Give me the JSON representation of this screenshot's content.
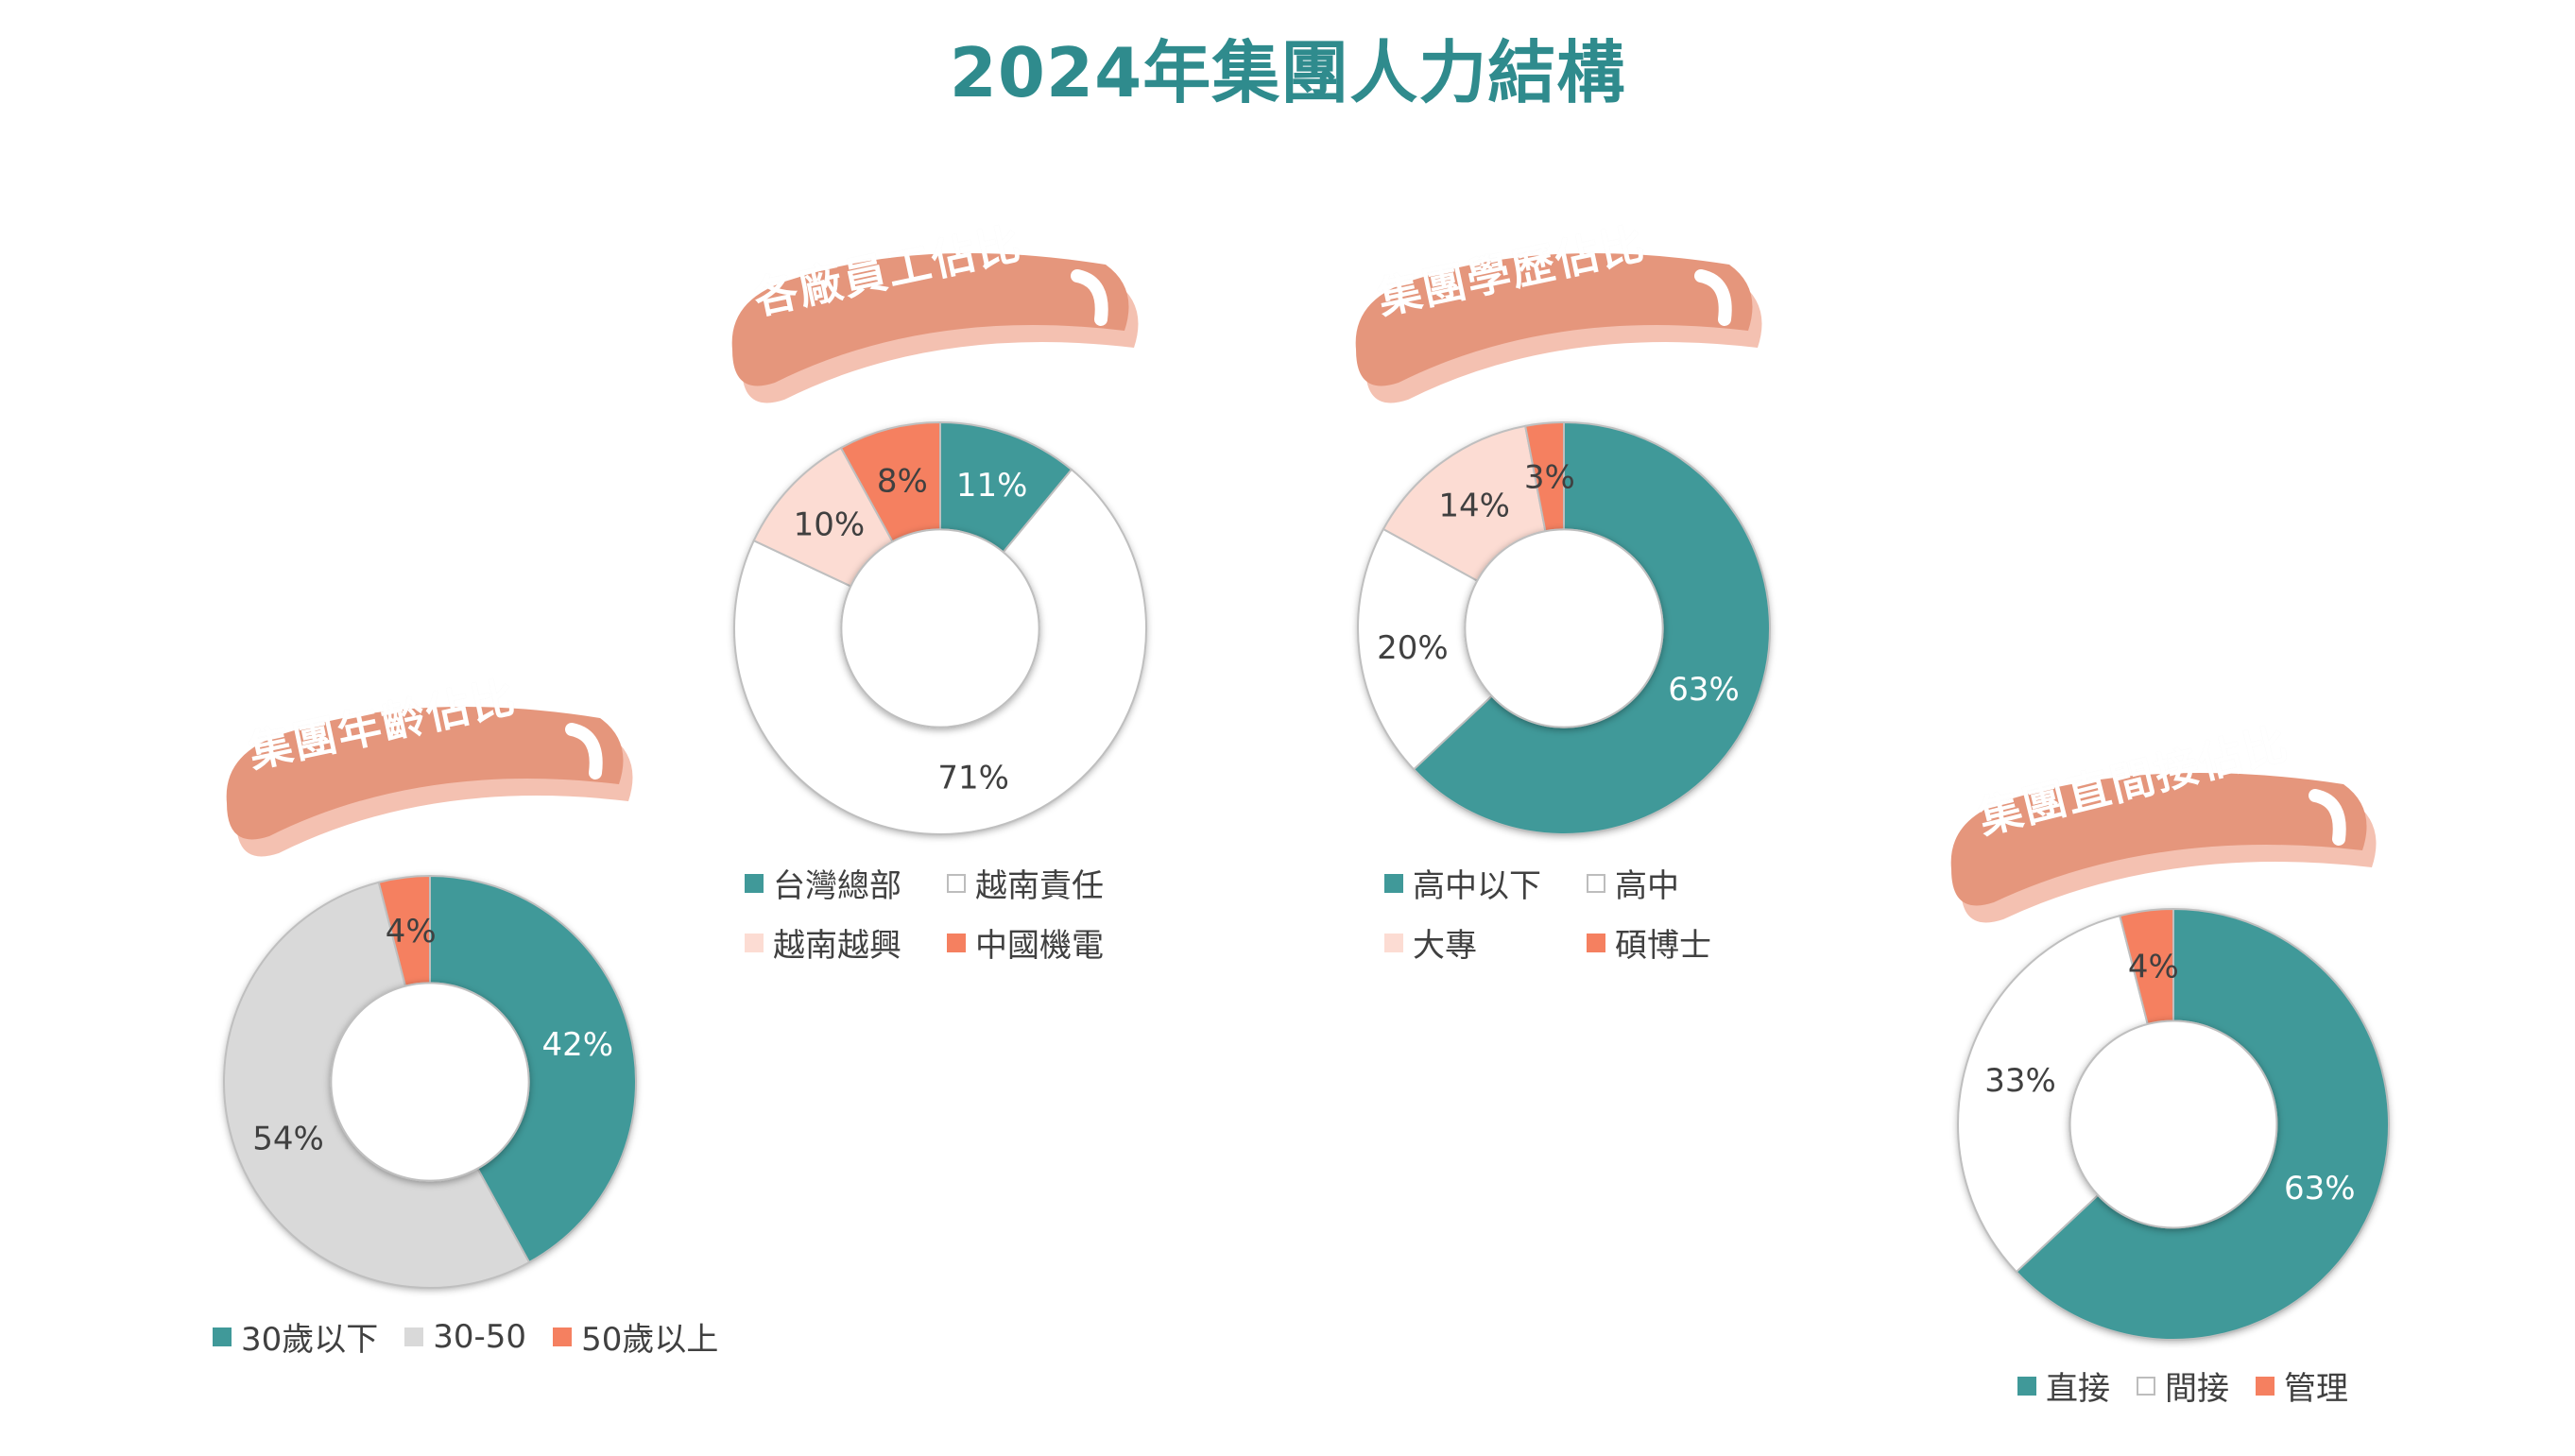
{
  "title": "2024年集團人力結構",
  "chart_data": [
    {
      "id": "factory",
      "type": "pie",
      "title": "各廠員工佔比",
      "categories": [
        "台灣總部",
        "越南責任",
        "越南越興",
        "中國機電"
      ],
      "values": [
        11,
        71,
        10,
        8
      ],
      "labels": [
        "11%",
        "71%",
        "10%",
        "8%"
      ],
      "colors": [
        "#409999",
        "#ffffff",
        "#fcdcd3",
        "#f58060"
      ],
      "labelColors": [
        "#ffffff",
        "#404040",
        "#404040",
        "#404040"
      ],
      "legend": "bottom"
    },
    {
      "id": "education",
      "type": "pie",
      "title": "集團學歷佔比",
      "categories": [
        "高中以下",
        "高中",
        "大專",
        "碩博士"
      ],
      "values": [
        63,
        20,
        14,
        3
      ],
      "labels": [
        "63%",
        "20%",
        "14%",
        "3%"
      ],
      "colors": [
        "#409999",
        "#ffffff",
        "#fcdcd3",
        "#f58060"
      ],
      "labelColors": [
        "#ffffff",
        "#404040",
        "#404040",
        "#404040"
      ],
      "legend": "bottom"
    },
    {
      "id": "age",
      "type": "pie",
      "title": "集團年齡佔比",
      "categories": [
        "30歲以下",
        "30-50",
        "50歲以上"
      ],
      "values": [
        42,
        54,
        4
      ],
      "labels": [
        "42%",
        "54%",
        "4%"
      ],
      "colors": [
        "#409999",
        "#d9d9d9",
        "#f58060"
      ],
      "labelColors": [
        "#ffffff",
        "#404040",
        "#404040"
      ],
      "legend": "bottom"
    },
    {
      "id": "direct",
      "type": "pie",
      "title": "集團直間接佔比",
      "categories": [
        "直接",
        "間接",
        "管理"
      ],
      "values": [
        63,
        33,
        4
      ],
      "labels": [
        "63%",
        "33%",
        "4%"
      ],
      "colors": [
        "#409999",
        "#ffffff",
        "#f58060"
      ],
      "labelColors": [
        "#ffffff",
        "#404040",
        "#404040"
      ],
      "legend": "bottom"
    }
  ]
}
